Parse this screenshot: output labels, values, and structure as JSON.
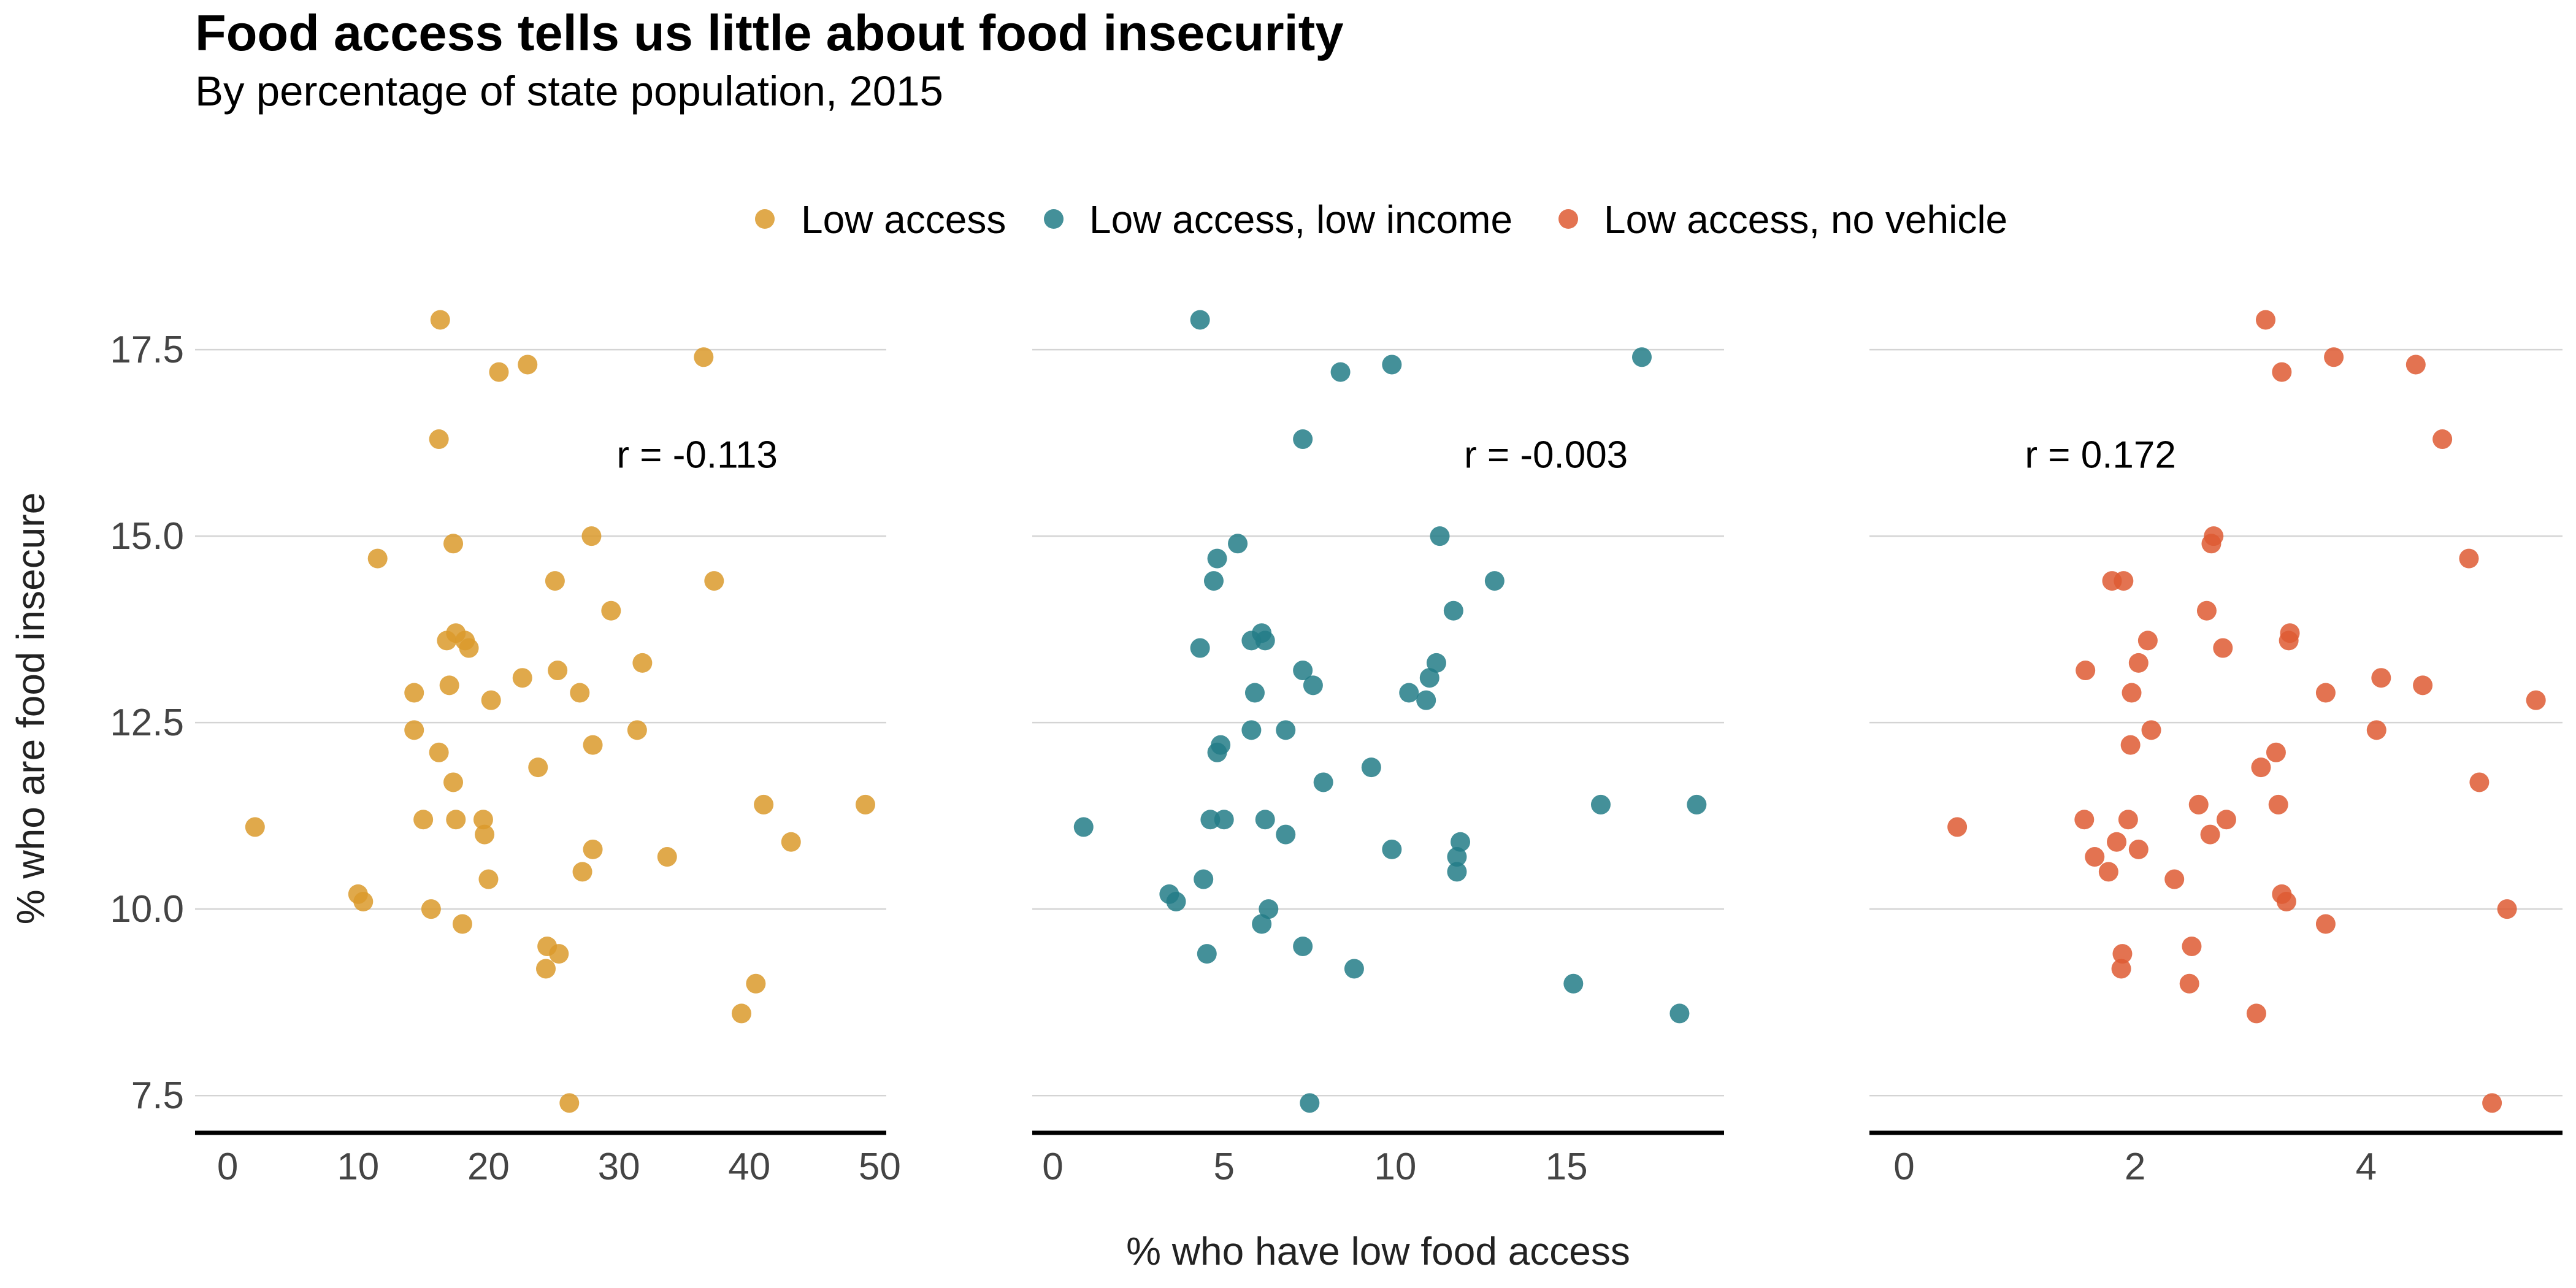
{
  "title": "Food access tells us little about food insecurity",
  "subtitle": "By percentage of state population, 2015",
  "chart_data": {
    "type": "scatter",
    "ylabel": "% who are food insecure",
    "xlabel": "% who have low food access",
    "ylim": [
      7.0,
      18.2
    ],
    "yticks": [
      7.5,
      10.0,
      12.5,
      15.0,
      17.5
    ],
    "ytick_labels": [
      "7.5",
      "10.0",
      "12.5",
      "15.0",
      "17.5"
    ],
    "grid": "horizontal",
    "legend_position": "top",
    "legend": [
      {
        "label": "Low access",
        "color": "#DB9A2B"
      },
      {
        "label": "Low access, low income",
        "color": "#237D87"
      },
      {
        "label": "Low access, no vehicle",
        "color": "#DE5A33"
      }
    ],
    "panels": [
      {
        "name": "Low access",
        "color": "#DB9A2B",
        "xlim": [
          -2.5,
          50.5
        ],
        "xticks": [
          0,
          10,
          20,
          30,
          40,
          50
        ],
        "xtick_labels": [
          "0",
          "10",
          "20",
          "30",
          "40",
          "50"
        ],
        "annotation": {
          "text": "r = -0.113",
          "x": 36,
          "y": 16.1
        },
        "points": [
          [
            16.3,
            17.9
          ],
          [
            20.8,
            17.2
          ],
          [
            23.0,
            17.3
          ],
          [
            36.5,
            17.4
          ],
          [
            16.2,
            16.3
          ],
          [
            11.5,
            14.7
          ],
          [
            17.3,
            14.9
          ],
          [
            27.9,
            15.0
          ],
          [
            25.1,
            14.4
          ],
          [
            37.3,
            14.4
          ],
          [
            16.8,
            13.6
          ],
          [
            17.5,
            13.7
          ],
          [
            18.2,
            13.6
          ],
          [
            18.5,
            13.5
          ],
          [
            29.4,
            14.0
          ],
          [
            22.6,
            13.1
          ],
          [
            25.3,
            13.2
          ],
          [
            31.8,
            13.3
          ],
          [
            14.3,
            12.9
          ],
          [
            17.0,
            13.0
          ],
          [
            20.2,
            12.8
          ],
          [
            27.0,
            12.9
          ],
          [
            14.3,
            12.4
          ],
          [
            16.2,
            12.1
          ],
          [
            31.4,
            12.4
          ],
          [
            28.0,
            12.2
          ],
          [
            17.3,
            11.7
          ],
          [
            23.8,
            11.9
          ],
          [
            2.1,
            11.1
          ],
          [
            15.0,
            11.2
          ],
          [
            17.5,
            11.2
          ],
          [
            19.6,
            11.2
          ],
          [
            19.7,
            11.0
          ],
          [
            28.0,
            10.8
          ],
          [
            41.1,
            11.4
          ],
          [
            48.9,
            11.4
          ],
          [
            43.2,
            10.9
          ],
          [
            33.7,
            10.7
          ],
          [
            10.0,
            10.2
          ],
          [
            10.4,
            10.1
          ],
          [
            15.6,
            10.0
          ],
          [
            20.0,
            10.4
          ],
          [
            27.2,
            10.5
          ],
          [
            18.0,
            9.8
          ],
          [
            24.5,
            9.5
          ],
          [
            25.4,
            9.4
          ],
          [
            24.4,
            9.2
          ],
          [
            40.5,
            9.0
          ],
          [
            39.4,
            8.6
          ],
          [
            26.2,
            7.4
          ]
        ]
      },
      {
        "name": "Low access, low income",
        "color": "#237D87",
        "xlim": [
          -0.6,
          19.6
        ],
        "xticks": [
          0,
          5,
          10,
          15
        ],
        "xtick_labels": [
          "0",
          "5",
          "10",
          "15"
        ],
        "annotation": {
          "text": "r = -0.003",
          "x": 14.4,
          "y": 16.1
        },
        "points": [
          [
            4.3,
            17.9
          ],
          [
            8.4,
            17.2
          ],
          [
            9.9,
            17.3
          ],
          [
            17.2,
            17.4
          ],
          [
            7.3,
            16.3
          ],
          [
            4.8,
            14.7
          ],
          [
            5.4,
            14.9
          ],
          [
            11.3,
            15.0
          ],
          [
            4.7,
            14.4
          ],
          [
            12.9,
            14.4
          ],
          [
            4.3,
            13.5
          ],
          [
            5.8,
            13.6
          ],
          [
            6.1,
            13.7
          ],
          [
            6.2,
            13.6
          ],
          [
            11.7,
            14.0
          ],
          [
            7.3,
            13.2
          ],
          [
            7.6,
            13.0
          ],
          [
            11.0,
            13.1
          ],
          [
            11.2,
            13.3
          ],
          [
            5.9,
            12.9
          ],
          [
            10.4,
            12.9
          ],
          [
            10.9,
            12.8
          ],
          [
            4.8,
            12.1
          ],
          [
            4.9,
            12.2
          ],
          [
            5.8,
            12.4
          ],
          [
            6.8,
            12.4
          ],
          [
            9.3,
            11.9
          ],
          [
            7.9,
            11.7
          ],
          [
            0.9,
            11.1
          ],
          [
            4.6,
            11.2
          ],
          [
            5.0,
            11.2
          ],
          [
            6.2,
            11.2
          ],
          [
            6.8,
            11.0
          ],
          [
            9.9,
            10.8
          ],
          [
            11.9,
            10.9
          ],
          [
            11.8,
            10.7
          ],
          [
            11.8,
            10.5
          ],
          [
            16.0,
            11.4
          ],
          [
            18.8,
            11.4
          ],
          [
            3.4,
            10.2
          ],
          [
            3.6,
            10.1
          ],
          [
            4.4,
            10.4
          ],
          [
            6.3,
            10.0
          ],
          [
            6.1,
            9.8
          ],
          [
            4.5,
            9.4
          ],
          [
            7.3,
            9.5
          ],
          [
            8.8,
            9.2
          ],
          [
            15.2,
            9.0
          ],
          [
            18.3,
            8.6
          ],
          [
            7.5,
            7.4
          ]
        ]
      },
      {
        "name": "Low access, no vehicle",
        "color": "#DE5A33",
        "xlim": [
          -0.3,
          5.7
        ],
        "xticks": [
          0,
          2,
          4
        ],
        "xtick_labels": [
          "0",
          "2",
          "4"
        ],
        "annotation": {
          "text": "r = 0.172",
          "x": 1.7,
          "y": 16.1
        },
        "points": [
          [
            3.13,
            17.9
          ],
          [
            3.27,
            17.2
          ],
          [
            3.72,
            17.4
          ],
          [
            4.43,
            17.3
          ],
          [
            4.66,
            16.3
          ],
          [
            2.68,
            15.0
          ],
          [
            2.66,
            14.9
          ],
          [
            4.89,
            14.7
          ],
          [
            1.8,
            14.4
          ],
          [
            1.9,
            14.4
          ],
          [
            2.62,
            14.0
          ],
          [
            3.33,
            13.6
          ],
          [
            3.34,
            13.7
          ],
          [
            2.11,
            13.6
          ],
          [
            2.03,
            13.3
          ],
          [
            1.57,
            13.2
          ],
          [
            2.76,
            13.5
          ],
          [
            4.13,
            13.1
          ],
          [
            4.49,
            13.0
          ],
          [
            3.65,
            12.9
          ],
          [
            1.97,
            12.9
          ],
          [
            5.47,
            12.8
          ],
          [
            2.14,
            12.4
          ],
          [
            4.09,
            12.4
          ],
          [
            3.22,
            12.1
          ],
          [
            1.96,
            12.2
          ],
          [
            3.09,
            11.9
          ],
          [
            4.98,
            11.7
          ],
          [
            0.46,
            11.1
          ],
          [
            1.56,
            11.2
          ],
          [
            1.94,
            11.2
          ],
          [
            2.55,
            11.4
          ],
          [
            3.24,
            11.4
          ],
          [
            2.79,
            11.2
          ],
          [
            2.65,
            11.0
          ],
          [
            1.65,
            10.7
          ],
          [
            1.77,
            10.5
          ],
          [
            1.84,
            10.9
          ],
          [
            2.03,
            10.8
          ],
          [
            2.34,
            10.4
          ],
          [
            3.27,
            10.2
          ],
          [
            3.31,
            10.1
          ],
          [
            5.22,
            10.0
          ],
          [
            3.65,
            9.8
          ],
          [
            1.89,
            9.4
          ],
          [
            1.88,
            9.2
          ],
          [
            2.49,
            9.5
          ],
          [
            2.47,
            9.0
          ],
          [
            3.05,
            8.6
          ],
          [
            5.09,
            7.4
          ]
        ]
      }
    ]
  }
}
